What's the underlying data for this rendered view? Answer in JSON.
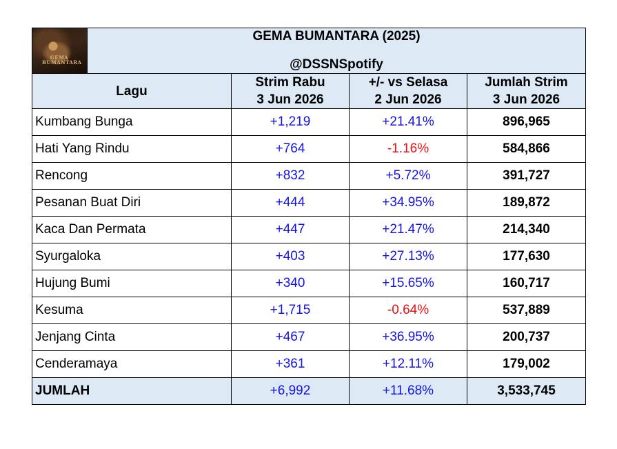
{
  "header": {
    "title": "GEMA BUMANTARA (2025)",
    "handle": "@DSSNSpotify",
    "cover_text": "GEMA BUMANTARA"
  },
  "columns": [
    {
      "line1": "Lagu",
      "line2": ""
    },
    {
      "line1": "Strim Rabu",
      "line2": "3 Jun 2026"
    },
    {
      "line1": "+/- vs Selasa",
      "line2": "2 Jun 2026"
    },
    {
      "line1": "Jumlah Strim",
      "line2": "3 Jun 2026"
    }
  ],
  "rows": [
    {
      "song": "Kumbang Bunga",
      "daily": "+1,219",
      "change": "+21.41%",
      "total": "896,965"
    },
    {
      "song": "Hati Yang Rindu",
      "daily": "+764",
      "change": "-1.16%",
      "total": "584,866"
    },
    {
      "song": "Rencong",
      "daily": "+832",
      "change": "+5.72%",
      "total": "391,727"
    },
    {
      "song": "Pesanan Buat Diri",
      "daily": "+444",
      "change": "+34.95%",
      "total": "189,872"
    },
    {
      "song": "Kaca Dan Permata",
      "daily": "+447",
      "change": "+21.47%",
      "total": "214,340"
    },
    {
      "song": "Syurgaloka",
      "daily": "+403",
      "change": "+27.13%",
      "total": "177,630"
    },
    {
      "song": "Hujung Bumi",
      "daily": "+340",
      "change": "+15.65%",
      "total": "160,717"
    },
    {
      "song": "Kesuma",
      "daily": "+1,715",
      "change": "-0.64%",
      "total": "537,889"
    },
    {
      "song": "Jenjang Cinta",
      "daily": "+467",
      "change": "+36.95%",
      "total": "200,737"
    },
    {
      "song": "Cenderamaya",
      "daily": "+361",
      "change": "+12.11%",
      "total": "179,002"
    }
  ],
  "total": {
    "song": "JUMLAH",
    "daily": "+6,992",
    "change": "+11.68%",
    "total": "3,533,745"
  },
  "colors": {
    "positive": "#1414e6",
    "negative": "#ee1010",
    "header_bg": "#dde9f5"
  }
}
